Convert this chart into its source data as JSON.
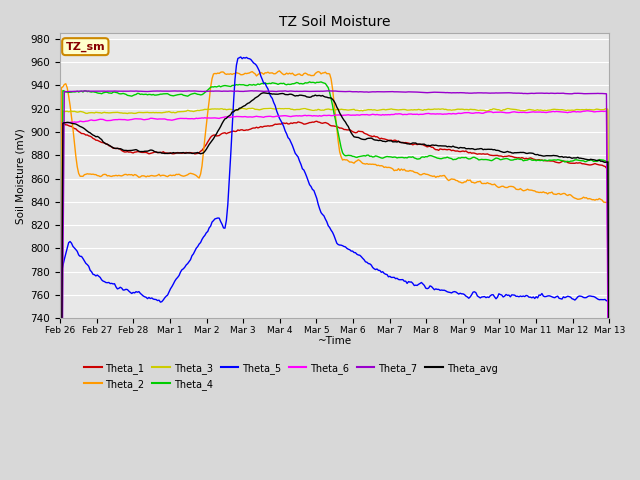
{
  "title": "TZ Soil Moisture",
  "xlabel": "~Time",
  "ylabel": "Soil Moisture (mV)",
  "ylim": [
    740,
    985
  ],
  "yticks": [
    740,
    760,
    780,
    800,
    820,
    840,
    860,
    880,
    900,
    920,
    940,
    960,
    980
  ],
  "bg_color": "#d8d8d8",
  "plot_bg_color": "#e8e8e8",
  "grid_color": "#ffffff",
  "annotation_box": {
    "text": "TZ_sm",
    "facecolor": "#ffffcc",
    "edgecolor": "#cc8800",
    "textcolor": "#880000"
  },
  "legend_entries": [
    "Theta_1",
    "Theta_2",
    "Theta_3",
    "Theta_4",
    "Theta_5",
    "Theta_6",
    "Theta_7",
    "Theta_avg"
  ],
  "colors": {
    "Theta_1": "#cc0000",
    "Theta_2": "#ff9900",
    "Theta_3": "#cccc00",
    "Theta_4": "#00cc00",
    "Theta_5": "#0000ff",
    "Theta_6": "#ff00ff",
    "Theta_7": "#9900cc",
    "Theta_avg": "#000000"
  },
  "dates_labels": [
    [
      0,
      "Feb 26"
    ],
    [
      1,
      "Feb 27"
    ],
    [
      2,
      "Feb 28"
    ],
    [
      3,
      "Mar 1"
    ],
    [
      4,
      "Mar 2"
    ],
    [
      5,
      "Mar 3"
    ],
    [
      6,
      "Mar 4"
    ],
    [
      7,
      "Mar 5"
    ],
    [
      8,
      "Mar 6"
    ],
    [
      9,
      "Mar 7"
    ],
    [
      10,
      "Mar 8"
    ],
    [
      11,
      "Mar 9"
    ],
    [
      12,
      "Mar 10"
    ],
    [
      13,
      "Mar 11"
    ],
    [
      14,
      "Mar 12"
    ],
    [
      15,
      "Mar 13"
    ]
  ]
}
